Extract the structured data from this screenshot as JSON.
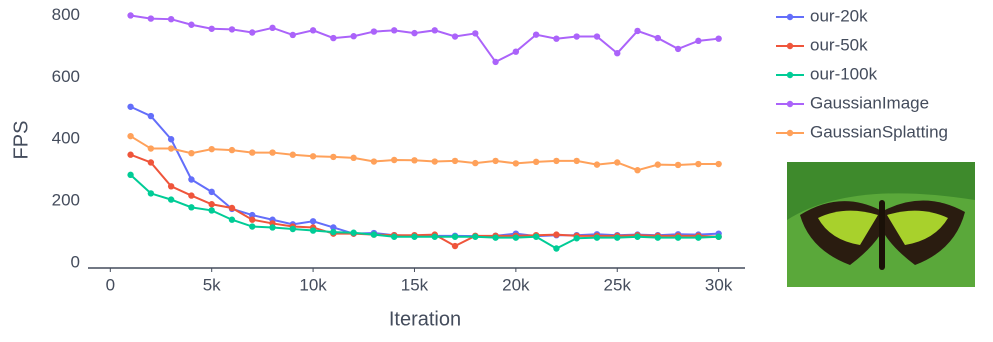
{
  "chart_data": {
    "type": "line",
    "x_label": "Iteration",
    "y_label": "FPS",
    "x": [
      1000,
      2000,
      3000,
      4000,
      5000,
      6000,
      7000,
      8000,
      9000,
      10000,
      11000,
      12000,
      13000,
      14000,
      15000,
      16000,
      17000,
      18000,
      19000,
      20000,
      21000,
      22000,
      23000,
      24000,
      25000,
      26000,
      27000,
      28000,
      29000,
      30000
    ],
    "series": [
      {
        "name": "our-20k",
        "color": "#636efa",
        "values": [
          505,
          475,
          400,
          270,
          230,
          175,
          155,
          140,
          125,
          135,
          115,
          95,
          97,
          90,
          88,
          88,
          88,
          87,
          88,
          95,
          87,
          90,
          90,
          93,
          90,
          92,
          90,
          93,
          92,
          95
        ]
      },
      {
        "name": "our-50k",
        "color": "#ef553b",
        "values": [
          350,
          325,
          248,
          218,
          190,
          178,
          140,
          128,
          118,
          115,
          95,
          95,
          92,
          90,
          90,
          92,
          55,
          88,
          88,
          88,
          90,
          92,
          88,
          88,
          88,
          90,
          88,
          88,
          88,
          85
        ]
      },
      {
        "name": "our-100k",
        "color": "#00cc96",
        "values": [
          285,
          225,
          205,
          180,
          170,
          140,
          118,
          115,
          110,
          105,
          100,
          98,
          92,
          85,
          85,
          85,
          85,
          85,
          82,
          82,
          85,
          47,
          80,
          82,
          82,
          85,
          82,
          82,
          82,
          85
        ]
      },
      {
        "name": "GaussianImage",
        "color": "#ab63fa",
        "values": [
          800,
          790,
          788,
          770,
          757,
          755,
          745,
          760,
          737,
          752,
          727,
          733,
          748,
          752,
          743,
          752,
          732,
          742,
          650,
          683,
          738,
          725,
          732,
          732,
          678,
          750,
          727,
          692,
          718,
          725
        ]
      },
      {
        "name": "GaussianSplatting",
        "color": "#ffa15a",
        "values": [
          410,
          370,
          370,
          355,
          368,
          365,
          357,
          357,
          350,
          345,
          343,
          340,
          328,
          333,
          332,
          328,
          330,
          323,
          330,
          322,
          327,
          330,
          330,
          318,
          325,
          300,
          318,
          317,
          320,
          320
        ]
      }
    ],
    "xlim": [
      -1100,
      31300
    ],
    "ylim": [
      -16,
      850
    ],
    "xticks": [
      0,
      {
        "value": 5000,
        "label": "5k"
      },
      {
        "value": 10000,
        "label": "10k"
      },
      {
        "value": 15000,
        "label": "15k"
      },
      {
        "value": 20000,
        "label": "20k"
      },
      {
        "value": 25000,
        "label": "25k"
      },
      {
        "value": 30000,
        "label": "30k"
      }
    ],
    "yticks": [
      0,
      200,
      400,
      600,
      800
    ],
    "grid": false,
    "legend": "right"
  }
}
